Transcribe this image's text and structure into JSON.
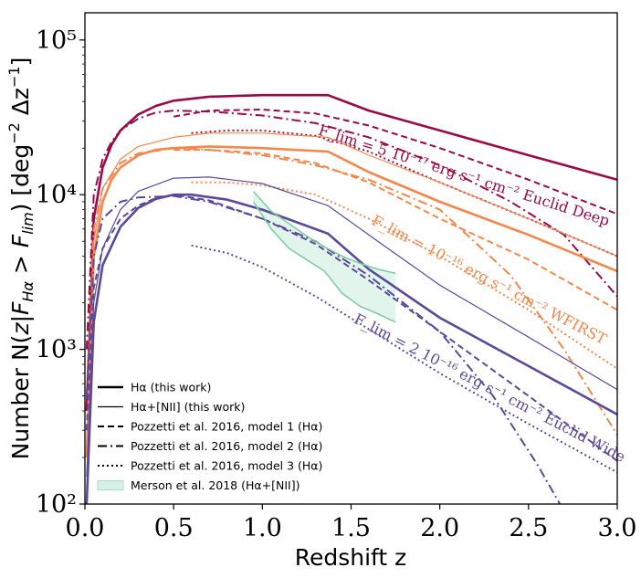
{
  "colors": {
    "deep": "#9b0a48",
    "wfirst": "#f4874b",
    "wide": "#5a4a9c",
    "merson_fill": "#cdeee0",
    "merson_line": "#7fce9f"
  },
  "chart_data": {
    "type": "line",
    "xlabel": "Redshift z",
    "ylabel": "Number N(z|F_Hα > F_lim) [deg^-2 Δz^-1]",
    "xlim": [
      0.0,
      3.0
    ],
    "ylim": [
      100,
      150000
    ],
    "yscale": "log",
    "x_ticks": [
      "0.0",
      "0.5",
      "1.0",
      "1.5",
      "2.0",
      "2.5",
      "3.0"
    ],
    "y_ticks": [
      {
        "value": 100,
        "label": "10²"
      },
      {
        "value": 1000,
        "label": "10³"
      },
      {
        "value": 10000,
        "label": "10⁴"
      },
      {
        "value": 100000,
        "label": "10⁵"
      }
    ],
    "annotations": {
      "deep": "F_lim = 5 10⁻¹⁷ erg s⁻¹ cm⁻² Euclid Deep",
      "wfirst": "F_lim = 10⁻¹⁶ erg s⁻¹ cm⁻² WFIRST",
      "wide": "F_lim = 2 10⁻¹⁶ erg s⁻¹ cm⁻² Euclid Wide"
    },
    "legend": [
      {
        "label": "Hα (this work)",
        "style": "thick-solid"
      },
      {
        "label": "Hα+[NII] (this work)",
        "style": "thin-solid"
      },
      {
        "label": "Pozzetti et al. 2016, model 1 (Hα)",
        "style": "dashed"
      },
      {
        "label": "Pozzetti et al. 2016, model 2 (Hα)",
        "style": "dashdot"
      },
      {
        "label": "Pozzetti et al. 2016, model 3 (Hα)",
        "style": "dotted"
      },
      {
        "label": "Merson et al. 2018 (Hα+[NII])",
        "style": "fill"
      }
    ],
    "series": [
      {
        "name": "Euclid Deep — Hα (this work)",
        "color": "deep",
        "style": "thick-solid",
        "x": [
          0.01,
          0.05,
          0.1,
          0.15,
          0.2,
          0.3,
          0.4,
          0.5,
          0.7,
          1.0,
          1.37,
          1.6,
          2.0,
          2.5,
          3.0
        ],
        "y": [
          400,
          7000,
          15000,
          21000,
          26000,
          33000,
          37500,
          40500,
          43000,
          44000,
          44000,
          35000,
          26000,
          18000,
          12500
        ]
      },
      {
        "name": "Euclid Deep — Pozzetti model 1",
        "color": "deep",
        "style": "dashed",
        "x": [
          0.5,
          0.7,
          1.0,
          1.3,
          1.6,
          2.0,
          2.5,
          3.0
        ],
        "y": [
          32000,
          35000,
          35500,
          33500,
          28000,
          20000,
          12500,
          7500
        ]
      },
      {
        "name": "Euclid Deep — Pozzetti model 2",
        "color": "deep",
        "style": "dashdot",
        "x": [
          0.01,
          0.05,
          0.1,
          0.15,
          0.2,
          0.3,
          0.4,
          0.5,
          0.7,
          1.0,
          1.3,
          1.6,
          2.0,
          2.4,
          2.7,
          3.0
        ],
        "y": [
          1000,
          10000,
          17000,
          22000,
          26000,
          31000,
          34000,
          35000,
          34500,
          32500,
          29000,
          23500,
          15500,
          9000,
          5500,
          2200
        ]
      },
      {
        "name": "Euclid Deep — Pozzetti model 3",
        "color": "deep",
        "style": "dotted",
        "x": [
          0.6,
          0.8,
          1.0,
          1.3,
          1.6,
          2.0,
          2.5,
          3.0
        ],
        "y": [
          25000,
          26000,
          26000,
          24000,
          19000,
          12000,
          7000,
          4000
        ]
      },
      {
        "name": "WFIRST — Hα (this work)",
        "color": "wfirst",
        "style": "thick-solid",
        "x": [
          0.01,
          0.05,
          0.1,
          0.15,
          0.2,
          0.3,
          0.4,
          0.5,
          0.7,
          1.0,
          1.37,
          1.6,
          2.0,
          2.5,
          3.0
        ],
        "y": [
          200,
          4000,
          9000,
          12500,
          15000,
          18000,
          19500,
          20000,
          20500,
          20000,
          19000,
          14000,
          9000,
          5500,
          3200
        ]
      },
      {
        "name": "WFIRST — Hα+[NII] (this work)",
        "color": "wfirst",
        "style": "thin-solid",
        "x": [
          0.01,
          0.05,
          0.1,
          0.2,
          0.3,
          0.5,
          0.7,
          1.0,
          1.37,
          1.6,
          2.0,
          2.5,
          3.0
        ],
        "y": [
          250,
          5000,
          11000,
          17000,
          20500,
          23500,
          25000,
          25000,
          23500,
          18000,
          12000,
          7000,
          4000
        ]
      },
      {
        "name": "WFIRST — Pozzetti model 1",
        "color": "wfirst",
        "style": "dashed",
        "x": [
          0.5,
          0.7,
          1.0,
          1.3,
          1.6,
          2.0,
          2.5,
          3.0
        ],
        "y": [
          19500,
          19500,
          18500,
          16000,
          12000,
          7000,
          3800,
          1800
        ]
      },
      {
        "name": "WFIRST — Pozzetti model 2",
        "color": "wfirst",
        "style": "dashdot",
        "x": [
          0.01,
          0.05,
          0.1,
          0.2,
          0.3,
          0.5,
          0.7,
          1.0,
          1.3,
          1.6,
          2.0,
          2.4,
          2.7,
          3.0
        ],
        "y": [
          500,
          6000,
          11000,
          16000,
          18500,
          20000,
          19500,
          18000,
          15500,
          12500,
          8000,
          3000,
          1000,
          280
        ]
      },
      {
        "name": "WFIRST — Pozzetti model 3",
        "color": "wfirst",
        "style": "dotted",
        "x": [
          0.6,
          0.8,
          1.0,
          1.3,
          1.6,
          2.0,
          2.5,
          3.0
        ],
        "y": [
          12000,
          12000,
          11500,
          10000,
          7000,
          4000,
          1800,
          750
        ]
      },
      {
        "name": "Euclid Wide — Hα (this work)",
        "color": "wide",
        "style": "thick-solid",
        "x": [
          0.01,
          0.05,
          0.1,
          0.2,
          0.3,
          0.4,
          0.5,
          0.6,
          0.8,
          1.0,
          1.37,
          1.6,
          2.0,
          2.5,
          3.0
        ],
        "y": [
          100,
          1500,
          3500,
          6200,
          8200,
          9400,
          10000,
          10000,
          9300,
          8000,
          5600,
          3300,
          1600,
          780,
          380
        ]
      },
      {
        "name": "Euclid Wide — Hα+[NII] (this work)",
        "color": "wide",
        "style": "thin-solid",
        "x": [
          0.01,
          0.05,
          0.1,
          0.2,
          0.3,
          0.5,
          0.7,
          1.0,
          1.37,
          1.6,
          2.0,
          2.5,
          3.0
        ],
        "y": [
          150,
          2000,
          4500,
          8000,
          10500,
          12800,
          13000,
          11800,
          8500,
          5500,
          2600,
          1200,
          550
        ]
      },
      {
        "name": "Euclid Wide — Pozzetti model 1",
        "color": "wide",
        "style": "dashed",
        "x": [
          0.01,
          0.05,
          0.1,
          0.2,
          0.3,
          0.4,
          0.5,
          0.7,
          1.0,
          1.3,
          1.6,
          2.0,
          2.5,
          3.0
        ],
        "y": [
          300,
          2500,
          4500,
          7000,
          8500,
          9500,
          10000,
          9200,
          7000,
          4800,
          2800,
          1300,
          500,
          190
        ]
      },
      {
        "name": "Euclid Wide — Pozzetti model 2",
        "color": "wide",
        "style": "dashdot",
        "x": [
          0.01,
          0.05,
          0.1,
          0.2,
          0.3,
          0.5,
          0.7,
          1.0,
          1.3,
          1.6,
          2.0,
          2.3,
          2.55,
          2.7
        ],
        "y": [
          500,
          4000,
          7000,
          9000,
          9600,
          9800,
          9000,
          7000,
          5000,
          3000,
          1300,
          500,
          180,
          90
        ]
      },
      {
        "name": "Euclid Wide — Pozzetti model 3",
        "color": "wide",
        "style": "dotted",
        "x": [
          0.6,
          0.8,
          1.0,
          1.3,
          1.6,
          2.0,
          2.5,
          3.0
        ],
        "y": [
          4700,
          4200,
          3400,
          2200,
          1350,
          700,
          330,
          160
        ]
      },
      {
        "name": "Merson et al. 2018 — upper",
        "color": "merson_line",
        "style": "band-edge",
        "x": [
          0.95,
          1.05,
          1.15,
          1.25,
          1.35,
          1.45,
          1.55,
          1.65,
          1.75
        ],
        "y": [
          10500,
          7800,
          6500,
          5400,
          4600,
          4000,
          3600,
          3300,
          3100
        ]
      },
      {
        "name": "Merson et al. 2018 — lower",
        "color": "merson_line",
        "style": "band-edge",
        "x": [
          0.95,
          1.05,
          1.15,
          1.25,
          1.35,
          1.45,
          1.55,
          1.65,
          1.75
        ],
        "y": [
          9000,
          6000,
          4500,
          3800,
          3200,
          2300,
          1900,
          1700,
          1500
        ]
      }
    ]
  }
}
